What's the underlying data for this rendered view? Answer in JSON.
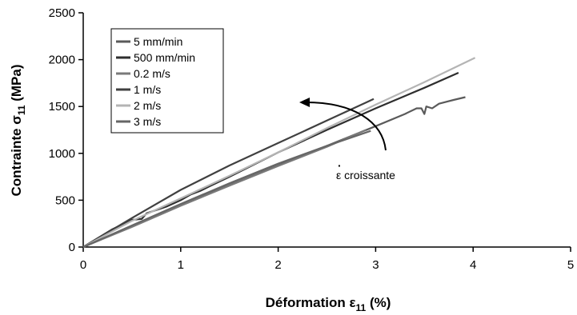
{
  "chart_data": {
    "type": "line",
    "title": "",
    "xlabel": {
      "main": "Déformation ε",
      "sub": "11",
      "unit": " (%)"
    },
    "ylabel": {
      "main": "Contrainte σ",
      "sub": "11",
      "unit": " (MPa)"
    },
    "xlim": [
      0,
      5
    ],
    "ylim": [
      0,
      2500
    ],
    "xticks": [
      0,
      1,
      2,
      3,
      4,
      5
    ],
    "yticks": [
      0,
      500,
      1000,
      1500,
      2000,
      2500
    ],
    "grid": false,
    "legend_position": "top-left",
    "annotation": {
      "dot": "·",
      "symbol": "ε",
      "text": " croissante"
    },
    "series": [
      {
        "name": "5 mm/min",
        "color": "#5a5a5a",
        "x": [
          0,
          0.5,
          1.0,
          1.5,
          2.0,
          2.5,
          3.0,
          3.3,
          3.42,
          3.47,
          3.5,
          3.52,
          3.58,
          3.65,
          3.8,
          3.92
        ],
        "y": [
          0,
          225,
          450,
          660,
          870,
          1080,
          1290,
          1420,
          1480,
          1480,
          1420,
          1500,
          1480,
          1530,
          1570,
          1600
        ]
      },
      {
        "name": "500 mm/min",
        "color": "#2e2e2e",
        "x": [
          0,
          0.3,
          0.5,
          0.6,
          0.65,
          0.75,
          0.85,
          1.0,
          1.1,
          1.2,
          1.3,
          1.5,
          2.0,
          2.5,
          3.0,
          3.5,
          3.85
        ],
        "y": [
          0,
          190,
          290,
          300,
          360,
          395,
          430,
          500,
          560,
          600,
          650,
          750,
          1010,
          1250,
          1480,
          1700,
          1860
        ]
      },
      {
        "name": "0.2 m/s",
        "color": "#7a7a7a",
        "x": [
          0,
          0.5,
          1.0,
          1.5,
          2.0,
          2.5,
          2.9
        ],
        "y": [
          0,
          215,
          440,
          655,
          865,
          1070,
          1250
        ]
      },
      {
        "name": "1 m/s",
        "color": "#404040",
        "x": [
          0,
          0.5,
          1.0,
          1.5,
          2.0,
          2.5,
          2.98
        ],
        "y": [
          0,
          310,
          610,
          870,
          1110,
          1350,
          1580
        ]
      },
      {
        "name": "2 m/s",
        "color": "#b4b4b4",
        "x": [
          0,
          0.5,
          1.0,
          1.5,
          2.0,
          2.5,
          3.0,
          3.5,
          4.02
        ],
        "y": [
          0,
          280,
          520,
          760,
          1010,
          1270,
          1520,
          1760,
          2020
        ]
      },
      {
        "name": "3 m/s",
        "color": "#666666",
        "x": [
          0,
          0.5,
          1.0,
          1.5,
          2.0,
          2.5,
          2.95
        ],
        "y": [
          0,
          230,
          460,
          680,
          890,
          1080,
          1240
        ]
      }
    ]
  }
}
